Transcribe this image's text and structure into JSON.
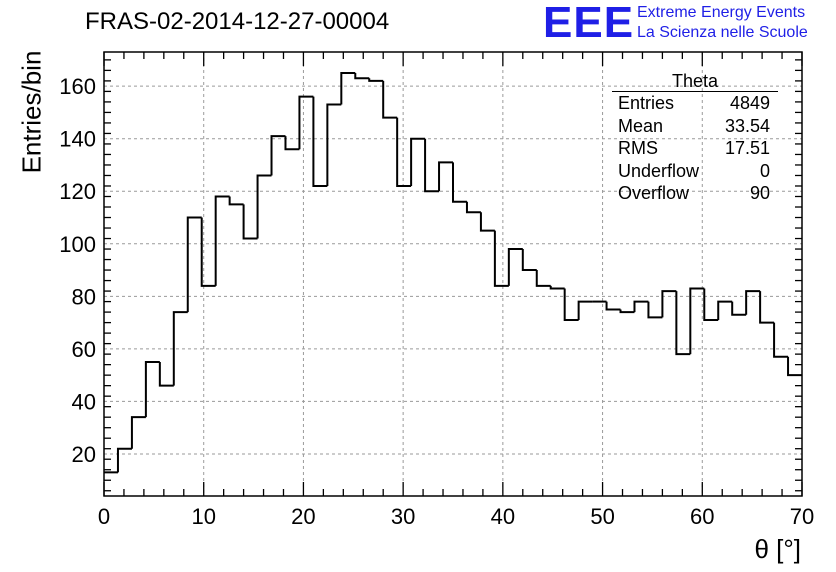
{
  "header": {
    "run_title": "FRAS-02-2014-12-27-00004",
    "logo_text": "EEE",
    "logo_line1": "Extreme Energy Events",
    "logo_line2": "La Scienza nelle Scuole",
    "logo_color": "#1f1fe6"
  },
  "stats_box": {
    "title": "Theta",
    "rows": [
      {
        "label": "Entries",
        "value": "4849"
      },
      {
        "label": "Mean",
        "value": "33.54"
      },
      {
        "label": "RMS",
        "value": "17.51"
      },
      {
        "label": "Underflow",
        "value": "0"
      },
      {
        "label": "Overflow",
        "value": "90"
      }
    ]
  },
  "chart_data": {
    "type": "bar",
    "style": "step-histogram",
    "title": "FRAS-02-2014-12-27-00004",
    "xlabel": "θ [°]",
    "ylabel": "Entries/bin",
    "xlim": [
      0,
      70
    ],
    "ylim": [
      4,
      173
    ],
    "x_ticks": [
      0,
      10,
      20,
      30,
      40,
      50,
      60,
      70
    ],
    "y_ticks": [
      20,
      40,
      60,
      80,
      100,
      120,
      140,
      160
    ],
    "grid": true,
    "line_color": "#000000",
    "bin_width": 1.4,
    "bin_edges_start": 0,
    "values": [
      13,
      22,
      34,
      55,
      46,
      74,
      110,
      84,
      118,
      115,
      102,
      126,
      141,
      136,
      156,
      122,
      153,
      165,
      163,
      162,
      148,
      122,
      140,
      120,
      131,
      116,
      112,
      105,
      84,
      98,
      90,
      84,
      83,
      71,
      78,
      78,
      75,
      74,
      78,
      72,
      82,
      58,
      83,
      71,
      78,
      73,
      82,
      70,
      57,
      50
    ]
  }
}
